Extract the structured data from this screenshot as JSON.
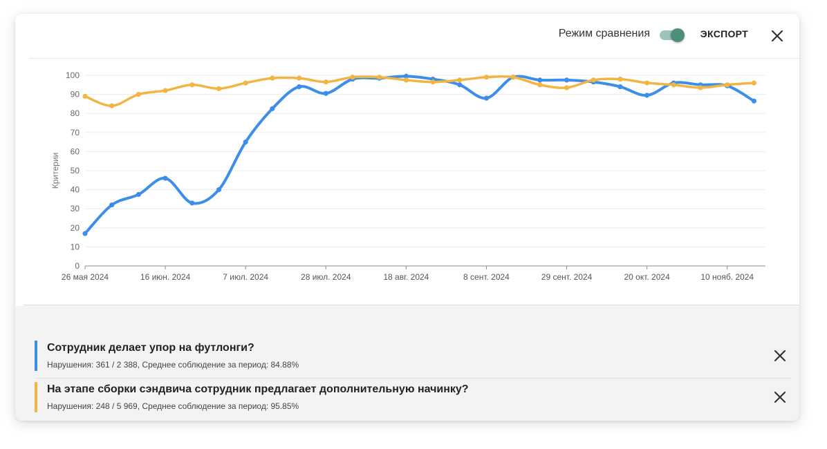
{
  "toolbar": {
    "compare_label": "Режим сравнения",
    "compare_on": true,
    "export_label": "ЭКСПОРТ"
  },
  "colors": {
    "series_blue": "#3d8ee8",
    "series_orange": "#f2b543",
    "toggle_thumb": "#4e8f7c",
    "toggle_track": "#9bc4ba"
  },
  "chart_data": {
    "type": "line",
    "ylabel": "Критерии",
    "xlabel": "",
    "ylim": [
      0,
      100
    ],
    "yticks": [
      0,
      10,
      20,
      30,
      40,
      50,
      60,
      70,
      80,
      90,
      100
    ],
    "xlim": [
      "2024-05-26",
      "2024-11-20"
    ],
    "xticks": [
      {
        "date": "2024-05-26",
        "label": "26 мая 2024"
      },
      {
        "date": "2024-06-16",
        "label": "16 июн. 2024"
      },
      {
        "date": "2024-07-07",
        "label": "7 июл. 2024"
      },
      {
        "date": "2024-07-28",
        "label": "28 июл. 2024"
      },
      {
        "date": "2024-08-18",
        "label": "18 авг. 2024"
      },
      {
        "date": "2024-09-08",
        "label": "8 сент. 2024"
      },
      {
        "date": "2024-09-29",
        "label": "29 сент. 2024"
      },
      {
        "date": "2024-10-20",
        "label": "20 окт. 2024"
      },
      {
        "date": "2024-11-10",
        "label": "10 нояб. 2024"
      }
    ],
    "grid": true,
    "series": [
      {
        "color": "#3d8ee8",
        "points": [
          [
            "2024-05-26",
            17
          ],
          [
            "2024-06-02",
            32
          ],
          [
            "2024-06-09",
            37.5
          ],
          [
            "2024-06-16",
            46
          ],
          [
            "2024-06-23",
            33
          ],
          [
            "2024-06-30",
            40
          ],
          [
            "2024-07-07",
            65
          ],
          [
            "2024-07-14",
            82.5
          ],
          [
            "2024-07-21",
            94
          ],
          [
            "2024-07-28",
            90.5
          ],
          [
            "2024-08-04",
            98
          ],
          [
            "2024-08-11",
            98.5
          ],
          [
            "2024-08-18",
            99.5
          ],
          [
            "2024-08-25",
            98
          ],
          [
            "2024-09-01",
            95
          ],
          [
            "2024-09-08",
            88
          ],
          [
            "2024-09-15",
            99
          ],
          [
            "2024-09-22",
            97.5
          ],
          [
            "2024-09-29",
            97.5
          ],
          [
            "2024-10-06",
            96.5
          ],
          [
            "2024-10-13",
            94
          ],
          [
            "2024-10-20",
            89.5
          ],
          [
            "2024-10-27",
            96
          ],
          [
            "2024-11-03",
            95
          ],
          [
            "2024-11-10",
            94.5
          ],
          [
            "2024-11-17",
            86.5
          ]
        ]
      },
      {
        "color": "#f2b543",
        "points": [
          [
            "2024-05-26",
            89
          ],
          [
            "2024-06-02",
            84
          ],
          [
            "2024-06-09",
            90
          ],
          [
            "2024-06-16",
            92
          ],
          [
            "2024-06-23",
            95
          ],
          [
            "2024-06-30",
            93
          ],
          [
            "2024-07-07",
            96
          ],
          [
            "2024-07-14",
            98.5
          ],
          [
            "2024-07-21",
            98.5
          ],
          [
            "2024-07-28",
            96.5
          ],
          [
            "2024-08-04",
            99
          ],
          [
            "2024-08-11",
            99
          ],
          [
            "2024-08-18",
            97.5
          ],
          [
            "2024-08-25",
            96.5
          ],
          [
            "2024-09-01",
            97.5
          ],
          [
            "2024-09-08",
            99
          ],
          [
            "2024-09-15",
            99
          ],
          [
            "2024-09-22",
            95
          ],
          [
            "2024-09-29",
            93.5
          ],
          [
            "2024-10-06",
            97.5
          ],
          [
            "2024-10-13",
            98
          ],
          [
            "2024-10-20",
            96
          ],
          [
            "2024-10-27",
            95
          ],
          [
            "2024-11-03",
            93.5
          ],
          [
            "2024-11-10",
            95
          ],
          [
            "2024-11-17",
            96
          ]
        ]
      }
    ]
  },
  "legend": [
    {
      "title": "Сотрудник делает упор на футлонги?",
      "stats": "Нарушения: 361 / 2 388, Среднее соблюдение за период: 84.88%",
      "color": "#3d8ee8"
    },
    {
      "title": "На этапе сборки сэндвича сотрудник предлагает дополнительную начинку?",
      "stats": "Нарушения: 248 / 5 969, Среднее соблюдение за период: 95.85%",
      "color": "#f2b543"
    }
  ]
}
